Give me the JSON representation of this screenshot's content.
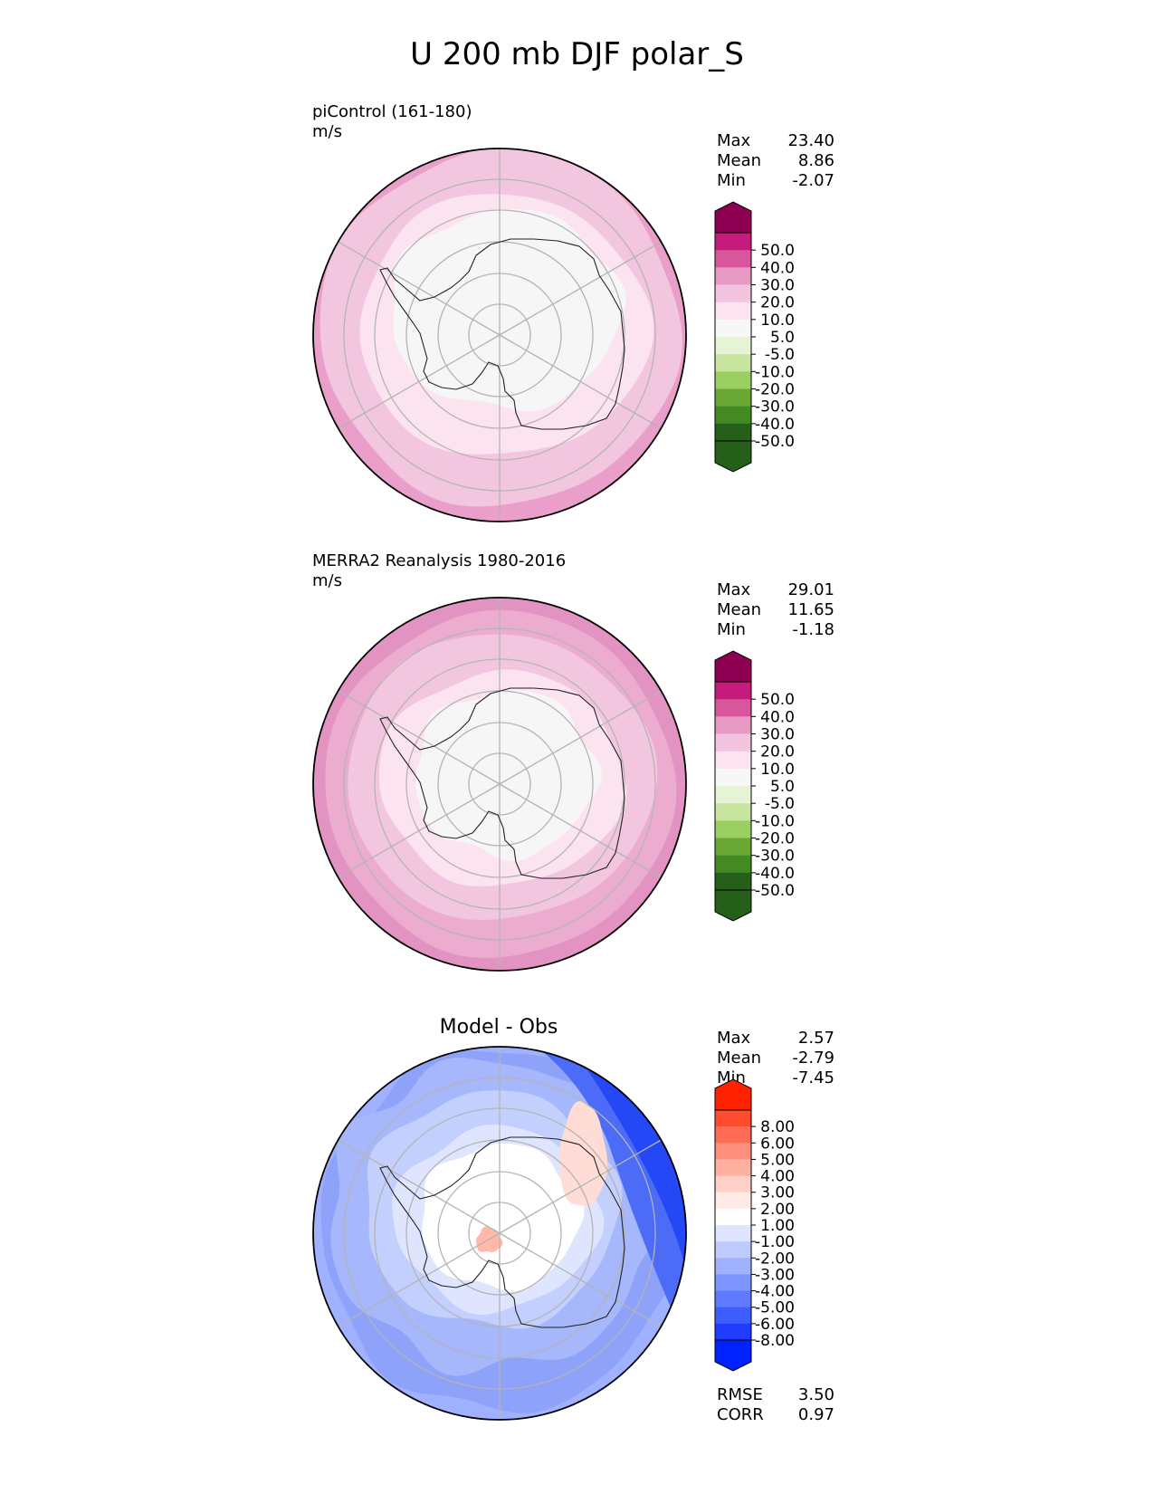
{
  "title": "U 200 mb DJF polar_S",
  "panels": [
    {
      "id": "test",
      "title": "piControl (161-180)",
      "units": "m/s",
      "stats": [
        {
          "label": "Max",
          "value": "23.40"
        },
        {
          "label": "Mean",
          "value": "8.86"
        },
        {
          "label": "Min",
          "value": "-2.07"
        }
      ],
      "levels": [
        "50.0",
        "40.0",
        "30.0",
        "20.0",
        "10.0",
        "5.0",
        "-5.0",
        "-10.0",
        "-20.0",
        "-30.0",
        "-40.0",
        "-50.0"
      ],
      "colors": [
        "#8e0152",
        "#c51b7d",
        "#de77ae",
        "#f1b6da",
        "#fde0ef",
        "#f7f7f7",
        "#e6f5d0",
        "#b8e186",
        "#7fbc41",
        "#4d9221",
        "#276419",
        "#276419"
      ],
      "colorbar": [
        "#8e0152",
        "#c51b7d",
        "#d8569b",
        "#e79ac4",
        "#f3c4df",
        "#fbe3ef",
        "#f7f7f7",
        "#e6f3d6",
        "#c8e6a0",
        "#9bcf63",
        "#6aa735",
        "#438a23",
        "#265f1a",
        "#265f1a"
      ]
    },
    {
      "id": "ref",
      "title": "MERRA2 Reanalysis 1980-2016",
      "units": "m/s",
      "stats": [
        {
          "label": "Max",
          "value": "29.01"
        },
        {
          "label": "Mean",
          "value": "11.65"
        },
        {
          "label": "Min",
          "value": "-1.18"
        }
      ],
      "levels": [
        "50.0",
        "40.0",
        "30.0",
        "20.0",
        "10.0",
        "5.0",
        "-5.0",
        "-10.0",
        "-20.0",
        "-30.0",
        "-40.0",
        "-50.0"
      ],
      "colorbar": [
        "#8e0152",
        "#c51b7d",
        "#d8569b",
        "#e79ac4",
        "#f3c4df",
        "#fbe3ef",
        "#f7f7f7",
        "#e6f3d6",
        "#c8e6a0",
        "#9bcf63",
        "#6aa735",
        "#438a23",
        "#265f1a",
        "#265f1a"
      ]
    },
    {
      "id": "diff",
      "title": "Model - Obs",
      "stats": [
        {
          "label": "Max",
          "value": "2.57"
        },
        {
          "label": "Mean",
          "value": "-2.79"
        },
        {
          "label": "Min",
          "value": "-7.45"
        }
      ],
      "levels": [
        "8.00",
        "6.00",
        "5.00",
        "4.00",
        "3.00",
        "2.00",
        "1.00",
        "-1.00",
        "-2.00",
        "-3.00",
        "-4.00",
        "-5.00",
        "-6.00",
        "-8.00"
      ],
      "colorbar": [
        "#ff2200",
        "#ff4b2e",
        "#ff6c55",
        "#ff8f7c",
        "#ffb0a0",
        "#ffd0c5",
        "#ffeae6",
        "#ffffff",
        "#dfe5ff",
        "#bfcaff",
        "#9fb1ff",
        "#7f95ff",
        "#5f7aff",
        "#3f5cff",
        "#1f3cff",
        "#0022ff"
      ],
      "metrics": [
        {
          "label": "RMSE",
          "value": "3.50"
        },
        {
          "label": "CORR",
          "value": "0.97"
        }
      ]
    }
  ]
}
